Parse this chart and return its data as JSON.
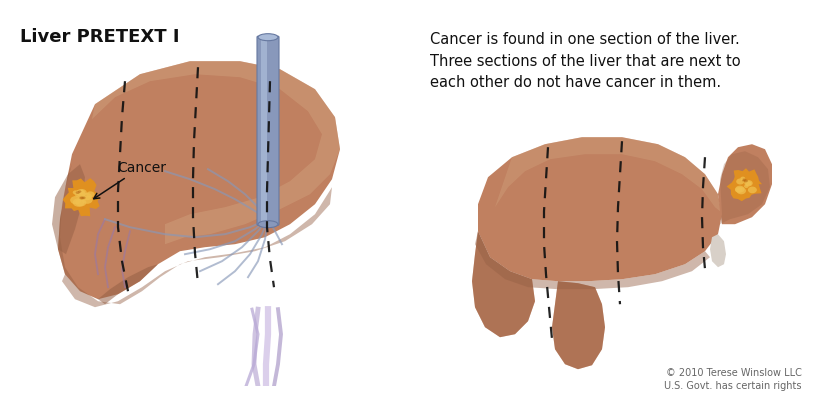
{
  "title": "Liver PRETEXT I",
  "title_fontsize": 13,
  "title_fontweight": "bold",
  "description_text": "Cancer is found in one section of the liver.\nThree sections of the liver that are next to\neach other do not have cancer in them.",
  "description_fontsize": 10.5,
  "cancer_label": "Cancer",
  "copyright_text": "© 2010 Terese Winslow LLC\nU.S. Govt. has certain rights",
  "copyright_fontsize": 7,
  "bg_color": "#ffffff",
  "liver_color_main": "#c08060",
  "liver_color_dark": "#956045",
  "liver_color_light": "#d4a882",
  "liver_color_reddark": "#804030",
  "dashed_color": "#111111",
  "vessel_blue": "#8898b8",
  "vessel_purple": "#9878a8",
  "cancer_orange": "#e09020",
  "cancer_yellow": "#f0c050",
  "cancer_dark": "#b06010"
}
